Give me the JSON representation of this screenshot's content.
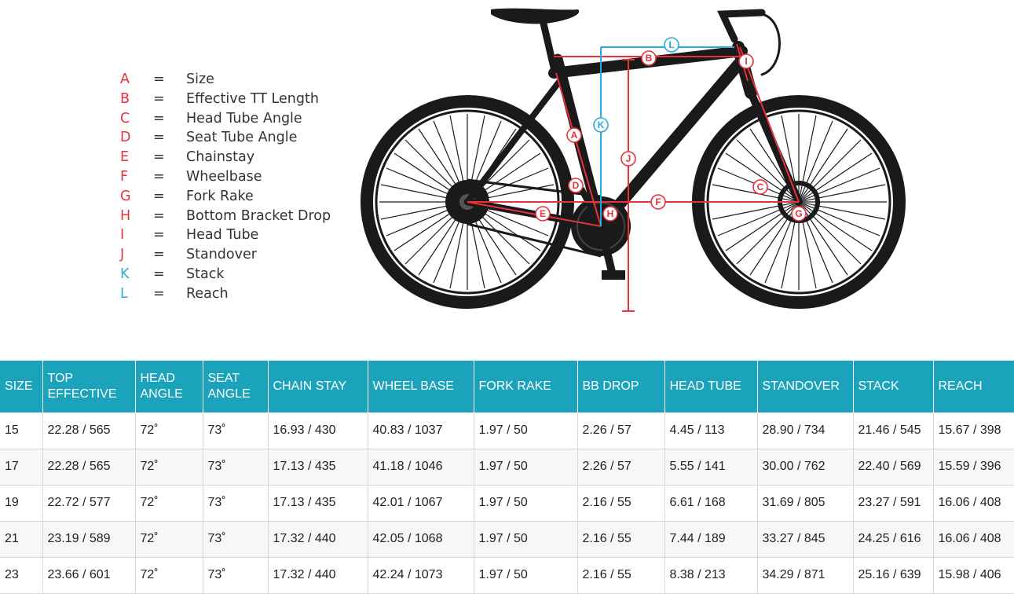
{
  "legend": [
    {
      "letter": "A",
      "eq": "=",
      "name": "Size",
      "color": "#e8313a"
    },
    {
      "letter": "B",
      "eq": "=",
      "name": "Effective TT Length",
      "color": "#e8313a"
    },
    {
      "letter": "C",
      "eq": "=",
      "name": "Head Tube Angle",
      "color": "#e8313a"
    },
    {
      "letter": "D",
      "eq": "=",
      "name": "Seat Tube Angle",
      "color": "#e8313a"
    },
    {
      "letter": "E",
      "eq": "=",
      "name": "Chainstay",
      "color": "#e8313a"
    },
    {
      "letter": "F",
      "eq": "=",
      "name": "Wheelbase",
      "color": "#e8313a"
    },
    {
      "letter": "G",
      "eq": "=",
      "name": "Fork Rake",
      "color": "#e8313a"
    },
    {
      "letter": "H",
      "eq": "=",
      "name": "Bottom Bracket Drop",
      "color": "#e8313a"
    },
    {
      "letter": "I",
      "eq": "=",
      "name": "Head Tube",
      "color": "#e8313a"
    },
    {
      "letter": "J",
      "eq": "=",
      "name": "Standover",
      "color": "#e8313a"
    },
    {
      "letter": "K",
      "eq": "=",
      "name": "Stack",
      "color": "#29a9e1"
    },
    {
      "letter": "L",
      "eq": "=",
      "name": "Reach",
      "color": "#29a9e1"
    }
  ],
  "diagram_labels": {
    "a": "A",
    "b": "B",
    "c": "C",
    "d": "D",
    "e": "E",
    "f": "F",
    "g": "G",
    "h": "H",
    "i": "I",
    "j": "J",
    "k": "K",
    "l": "L"
  },
  "colors": {
    "header_bg": "#1aa3bb",
    "header_text": "#ffffff",
    "measure_red": "#e8313a",
    "measure_blue": "#29a9e1",
    "bike": "#1a1a1a"
  },
  "table": {
    "headers": [
      {
        "line1": "SIZE",
        "line2": ""
      },
      {
        "line1": "TOP",
        "line2": "EFFECTIVE"
      },
      {
        "line1": "HEAD",
        "line2": "ANGLE"
      },
      {
        "line1": "SEAT",
        "line2": "ANGLE"
      },
      {
        "line1": "CHAIN STAY",
        "line2": ""
      },
      {
        "line1": "WHEEL BASE",
        "line2": ""
      },
      {
        "line1": "FORK RAKE",
        "line2": ""
      },
      {
        "line1": "BB DROP",
        "line2": ""
      },
      {
        "line1": "HEAD TUBE",
        "line2": ""
      },
      {
        "line1": "STANDOVER",
        "line2": ""
      },
      {
        "line1": "STACK",
        "line2": ""
      },
      {
        "line1": "REACH",
        "line2": ""
      }
    ],
    "rows": [
      [
        "15",
        "22.28 / 565",
        "72˚",
        "73˚",
        "16.93 / 430",
        "40.83 / 1037",
        "1.97 / 50",
        "2.26 / 57",
        "4.45 / 113",
        "28.90 / 734",
        "21.46 / 545",
        "15.67 / 398"
      ],
      [
        "17",
        "22.28 / 565",
        "72˚",
        "73˚",
        "17.13 / 435",
        "41.18 / 1046",
        "1.97 / 50",
        "2.26 / 57",
        "5.55 / 141",
        "30.00 / 762",
        "22.40 / 569",
        "15.59 / 396"
      ],
      [
        "19",
        "22.72 / 577",
        "72˚",
        "73˚",
        "17.13 / 435",
        "42.01 / 1067",
        "1.97 / 50",
        "2.16 / 55",
        "6.61 / 168",
        "31.69 / 805",
        "23.27 / 591",
        "16.06 / 408"
      ],
      [
        "21",
        "23.19 / 589",
        "72˚",
        "73˚",
        "17.32 / 440",
        "42.05 / 1068",
        "1.97 / 50",
        "2.16 / 55",
        "7.44 / 189",
        "33.27 / 845",
        "24.25 / 616",
        "16.06 / 408"
      ],
      [
        "23",
        "23.66 / 601",
        "72˚",
        "73˚",
        "17.32 / 440",
        "42.24 / 1073",
        "1.97 / 50",
        "2.16 / 55",
        "8.38 / 213",
        "34.29 / 871",
        "25.16 / 639",
        "15.98 / 406"
      ]
    ]
  }
}
